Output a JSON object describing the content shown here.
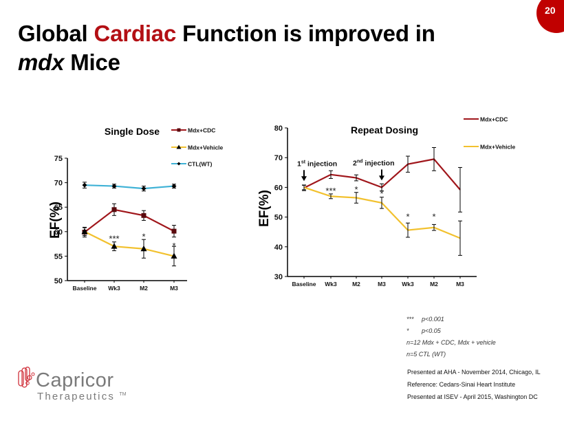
{
  "page_number": "20",
  "title": {
    "part1": "Global ",
    "accent": "Cardiac",
    "part2": " Function is improved in",
    "line2_italic": "mdx",
    "line2_rest": " Mice"
  },
  "colors": {
    "accent": "#b30f14",
    "cdc": "#a0161b",
    "vehicle": "#f2c12e",
    "ctl": "#3fb2d6",
    "badge": "#c00000"
  },
  "chart_data": [
    {
      "type": "line",
      "title": "Single Dose",
      "ylabel": "EF(%)",
      "xlabel": "",
      "categories": [
        "Baseline",
        "Wk3",
        "M2",
        "M3"
      ],
      "ylim": [
        50,
        75
      ],
      "yticks": [
        50,
        55,
        60,
        65,
        70,
        75
      ],
      "grid": false,
      "legend": "top-right",
      "series": [
        {
          "name": "Mdx+CDC",
          "color": "#a0161b",
          "marker": "square",
          "values": [
            59.9,
            64.5,
            63.3,
            60.1
          ],
          "errors": [
            1.0,
            1.2,
            1.0,
            1.2
          ]
        },
        {
          "name": "Mdx+Vehicle",
          "color": "#f2c12e",
          "marker": "triangle",
          "values": [
            60.0,
            57.0,
            56.5,
            55.0
          ],
          "errors": [
            0.8,
            0.9,
            1.9,
            2.0
          ]
        },
        {
          "name": "CTL(WT)",
          "color": "#3fb2d6",
          "marker": "diamond",
          "values": [
            69.5,
            69.3,
            68.8,
            69.3
          ],
          "errors": [
            0.6,
            0.4,
            0.5,
            0.4
          ]
        }
      ],
      "annotations": [
        {
          "text": "***",
          "x": "Wk3",
          "y": 58.8
        },
        {
          "text": "*",
          "x": "M2",
          "y": 59.2
        },
        {
          "text": "*",
          "x": "M3",
          "y": 57.3
        }
      ]
    },
    {
      "type": "line",
      "title": "Repeat Dosing",
      "ylabel": "EF(%)",
      "xlabel": "",
      "categories": [
        "Baseline",
        "Wk3",
        "M2",
        "M3",
        "Wk3",
        "M2",
        "M3"
      ],
      "ylim": [
        30,
        80
      ],
      "yticks": [
        30,
        40,
        50,
        60,
        70,
        80
      ],
      "grid": false,
      "legend": "top-right",
      "series": [
        {
          "name": "Mdx+CDC",
          "color": "#a0161b",
          "values": [
            59.8,
            64.3,
            63.2,
            60.0,
            67.8,
            69.5,
            59.2
          ],
          "errors": [
            0.9,
            1.3,
            1.0,
            1.2,
            2.7,
            3.9,
            7.5
          ]
        },
        {
          "name": "Mdx+Vehicle",
          "color": "#f2c12e",
          "values": [
            60.0,
            57.0,
            56.5,
            54.8,
            45.6,
            46.5,
            42.9
          ],
          "errors": [
            0.8,
            0.8,
            1.8,
            1.9,
            2.4,
            1.0,
            5.8
          ]
        }
      ],
      "annotations": [
        {
          "text": "***",
          "x_index": 1,
          "y": 59.2
        },
        {
          "text": "*",
          "x_index": 2,
          "y": 59.6
        },
        {
          "text": "*",
          "x_index": 3,
          "y": 58.2
        },
        {
          "text": "*",
          "x_index": 4,
          "y": 50.5
        },
        {
          "text": "*",
          "x_index": 5,
          "y": 50.5
        }
      ],
      "injections": [
        {
          "label": "1",
          "sup": "st",
          "rest": " injection",
          "x_index": 0
        },
        {
          "label": "2",
          "sup": "nd",
          "rest": " injection",
          "x_index": 3
        }
      ]
    }
  ],
  "notes": [
    {
      "symbol": "***",
      "text": "p<0.001"
    },
    {
      "symbol": "*",
      "text": "p<0.05"
    },
    {
      "symbol": "",
      "text": "n=12 Mdx + CDC, Mdx + vehicle"
    },
    {
      "symbol": "",
      "text": "n=5 CTL (WT)"
    }
  ],
  "references": [
    "Presented at AHA - November 2014, Chicago, IL",
    "Reference: Cedars-Sinai Heart Institute",
    "Presented at ISEV - April 2015, Washington DC"
  ],
  "logo": {
    "name": "Capricor",
    "subtitle": "Therapeutics",
    "tm": "TM"
  }
}
